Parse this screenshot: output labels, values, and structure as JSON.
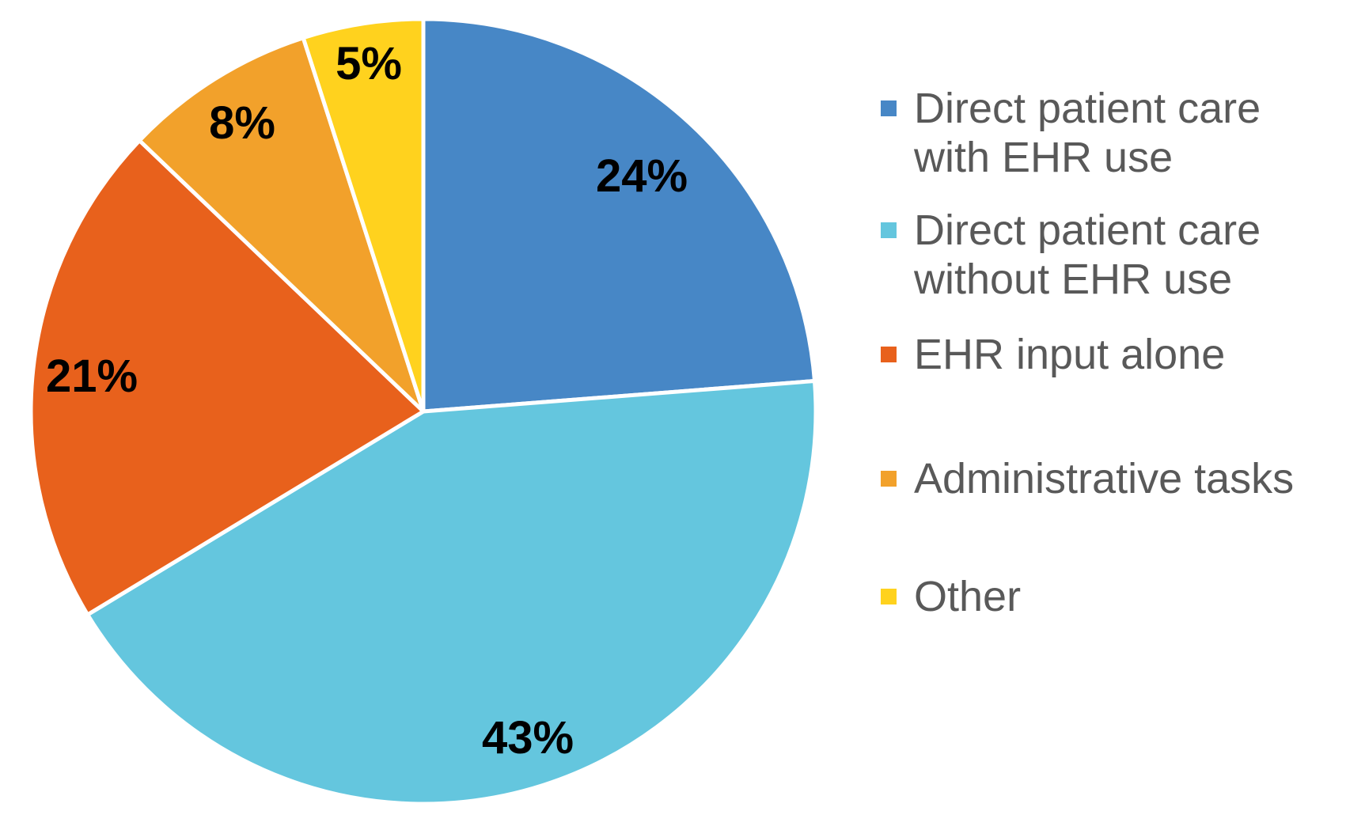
{
  "chart_data": {
    "type": "pie",
    "title": "",
    "legend_position": "right",
    "direction": "clockwise",
    "start_angle_deg": 0,
    "background_color": "#FFFFFF",
    "slice_border_color": "#FFFFFF",
    "data_label_color": "#000000",
    "legend_text_color": "#595959",
    "slices": [
      {
        "label": "Direct patient care with EHR use",
        "value": 24,
        "display_label": "24%",
        "color": "#4787C6"
      },
      {
        "label": "Direct patient care without EHR use",
        "value": 43,
        "display_label": "43%",
        "color": "#64C6DE"
      },
      {
        "label": "EHR input alone",
        "value": 21,
        "display_label": "21%",
        "color": "#E8611C"
      },
      {
        "label": "Administrative tasks",
        "value": 8,
        "display_label": "8%",
        "color": "#F2A12B"
      },
      {
        "label": "Other",
        "value": 5,
        "display_label": "5%",
        "color": "#FFD21E"
      }
    ]
  }
}
